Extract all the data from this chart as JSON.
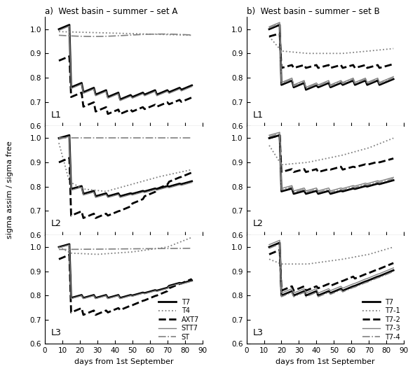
{
  "title_a": "a)  West basin – summer – set A",
  "title_b": "b)  West basin – summer – set B",
  "ylabel": "sigma assim / sigma free",
  "xlabel": "days from 1st September",
  "ylim": [
    0.6,
    1.05
  ],
  "yticks": [
    0.6,
    0.7,
    0.8,
    0.9,
    1.0
  ],
  "xticks": [
    0,
    10,
    20,
    30,
    40,
    50,
    60,
    70,
    80,
    90
  ],
  "xlim": [
    0,
    90
  ],
  "panel_labels": [
    "L1",
    "L2",
    "L3"
  ],
  "legend_a": [
    "T7",
    "T4",
    "AXT7",
    "STT7",
    "ST"
  ],
  "legend_b": [
    "T7",
    "T7-1",
    "T7-2",
    "T7-3",
    "T7-4"
  ]
}
